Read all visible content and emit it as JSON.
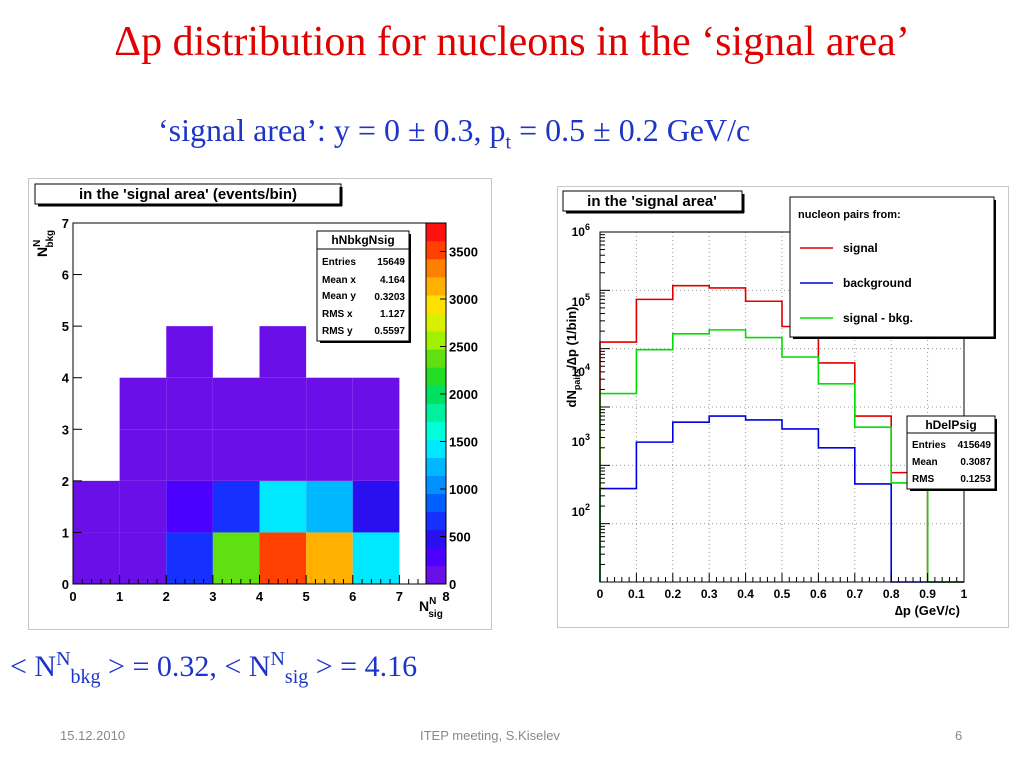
{
  "slide": {
    "title": "Δp distribution for nucleons in the ‘signal area’",
    "subtitle": {
      "prefix": "‘signal area’: y = 0 ±  0.3,  p",
      "sub": "t",
      "suffix": " = 0.5 ± 0.2 GeV/c"
    },
    "summary": {
      "p1": "< N",
      "sup1": "N",
      "sub1": "bkg",
      "p2": " > = 0.32,   < N",
      "sup2": "N",
      "sub2": "sig",
      "p3": " > = 4.16"
    },
    "footer": {
      "date": "15.12.2010",
      "event": "ITEP meeting,      S.Kiselev",
      "page": "6"
    }
  },
  "colors": {
    "title": "#e00000",
    "subtitle": "#1c35c8",
    "signal": "#e00000",
    "background": "#0000e0",
    "signal_minus_bkg": "#00dd00",
    "histo_fill": "#6a0fe8"
  },
  "left_plot": {
    "title": "in the 'signal area' (events/bin)",
    "xlabel": {
      "main": "N",
      "sup": "N",
      "sub": "sig"
    },
    "ylabel": {
      "main": "N",
      "sup": "N",
      "sub": "bkg"
    },
    "x_ticks": [
      "0",
      "1",
      "2",
      "3",
      "4",
      "5",
      "6",
      "7",
      "8"
    ],
    "y_ticks": [
      "0",
      "1",
      "2",
      "3",
      "4",
      "5",
      "6",
      "7"
    ],
    "palette_ticks": [
      "0",
      "500",
      "1000",
      "1500",
      "2000",
      "2500",
      "3000",
      "3500"
    ],
    "stats": {
      "name": "hNbkgNsig",
      "rows": [
        {
          "label": "Entries",
          "value": "15649"
        },
        {
          "label": "Mean x",
          "value": "4.164"
        },
        {
          "label": "Mean y",
          "value": "0.3203"
        },
        {
          "label": "RMS x",
          "value": "1.127"
        },
        {
          "label": "RMS y",
          "value": "0.5597"
        }
      ]
    }
  },
  "right_plot": {
    "title": "in the 'signal area'",
    "xlabel": "∆p (GeV/c)",
    "ylabel": {
      "a": "dN",
      "sub": "pairs",
      "b": "/∆p (1/bin)"
    },
    "x_ticks": [
      "0",
      "0.1",
      "0.2",
      "0.3",
      "0.4",
      "0.5",
      "0.6",
      "0.7",
      "0.8",
      "0.9",
      "1"
    ],
    "y_ticks": [
      {
        "base": "10",
        "exp": "2"
      },
      {
        "base": "10",
        "exp": "3"
      },
      {
        "base": "10",
        "exp": "4"
      },
      {
        "base": "10",
        "exp": "5"
      },
      {
        "base": "10",
        "exp": "6"
      }
    ],
    "legend": {
      "header": "nucleon pairs from:",
      "entries": [
        {
          "label": "signal",
          "color": "#e00000"
        },
        {
          "label": "background",
          "color": "#0000e0"
        },
        {
          "label": "signal - bkg.",
          "color": "#00dd00"
        }
      ]
    },
    "stats": {
      "name": "hDelPsig",
      "rows": [
        {
          "label": "Entries",
          "value": "415649"
        },
        {
          "label": "Mean",
          "value": "0.3087"
        },
        {
          "label": "RMS",
          "value": "0.1253"
        }
      ]
    }
  },
  "chart_data": [
    {
      "type": "heatmap",
      "title": "in the 'signal area' (events/bin)",
      "xlabel": "N^N_sig",
      "ylabel": "N^N_bkg",
      "xlim": [
        0,
        8
      ],
      "ylim": [
        0,
        7
      ],
      "zlim": [
        0,
        3800
      ],
      "cells": [
        {
          "x": 0,
          "y": 0,
          "z": 20
        },
        {
          "x": 1,
          "y": 0,
          "z": 60
        },
        {
          "x": 2,
          "y": 0,
          "z": 650
        },
        {
          "x": 3,
          "y": 0,
          "z": 2300
        },
        {
          "x": 4,
          "y": 0,
          "z": 3600
        },
        {
          "x": 5,
          "y": 0,
          "z": 3200
        },
        {
          "x": 6,
          "y": 0,
          "z": 1400
        },
        {
          "x": 0,
          "y": 1,
          "z": 10
        },
        {
          "x": 1,
          "y": 1,
          "z": 40
        },
        {
          "x": 2,
          "y": 1,
          "z": 350
        },
        {
          "x": 3,
          "y": 1,
          "z": 700
        },
        {
          "x": 4,
          "y": 1,
          "z": 1350
        },
        {
          "x": 5,
          "y": 1,
          "z": 1150
        },
        {
          "x": 6,
          "y": 1,
          "z": 400
        },
        {
          "x": 1,
          "y": 2,
          "z": 5
        },
        {
          "x": 2,
          "y": 2,
          "z": 10
        },
        {
          "x": 3,
          "y": 2,
          "z": 15
        },
        {
          "x": 4,
          "y": 2,
          "z": 20
        },
        {
          "x": 5,
          "y": 2,
          "z": 15
        },
        {
          "x": 6,
          "y": 2,
          "z": 5
        },
        {
          "x": 1,
          "y": 3,
          "z": 1
        },
        {
          "x": 2,
          "y": 3,
          "z": 2
        },
        {
          "x": 3,
          "y": 3,
          "z": 3
        },
        {
          "x": 4,
          "y": 3,
          "z": 3
        },
        {
          "x": 5,
          "y": 3,
          "z": 2
        },
        {
          "x": 6,
          "y": 3,
          "z": 1
        },
        {
          "x": 2,
          "y": 4,
          "z": 1
        },
        {
          "x": 4,
          "y": 4,
          "z": 1
        }
      ],
      "stats": {
        "name": "hNbkgNsig",
        "entries": 15649,
        "mean_x": 4.164,
        "mean_y": 0.3203,
        "rms_x": 1.127,
        "rms_y": 0.5597
      }
    },
    {
      "type": "line",
      "title": "in the 'signal area'",
      "xlabel": "∆p (GeV/c)",
      "ylabel": "dN_pairs/∆p (1/bin)",
      "y_scale": "log",
      "xlim": [
        0,
        1
      ],
      "ylim": [
        1,
        1000000
      ],
      "bin_edges": [
        0,
        0.1,
        0.2,
        0.3,
        0.4,
        0.5,
        0.6,
        0.7,
        0.8,
        0.9,
        1.0
      ],
      "series": [
        {
          "name": "signal",
          "values": [
            13000,
            70000,
            120000,
            110000,
            65000,
            24000,
            5700,
            700,
            75,
            1
          ]
        },
        {
          "name": "background",
          "values": [
            40,
            250,
            550,
            700,
            600,
            420,
            200,
            48,
            1,
            1
          ]
        },
        {
          "name": "signal - bkg.",
          "values": [
            1700,
            9600,
            18000,
            21000,
            15500,
            7200,
            2500,
            450,
            50,
            1
          ]
        }
      ],
      "legend": "top-right",
      "grid": true,
      "stats": {
        "name": "hDelPsig",
        "entries": 415649,
        "mean": 0.3087,
        "rms": 0.1253
      }
    }
  ]
}
